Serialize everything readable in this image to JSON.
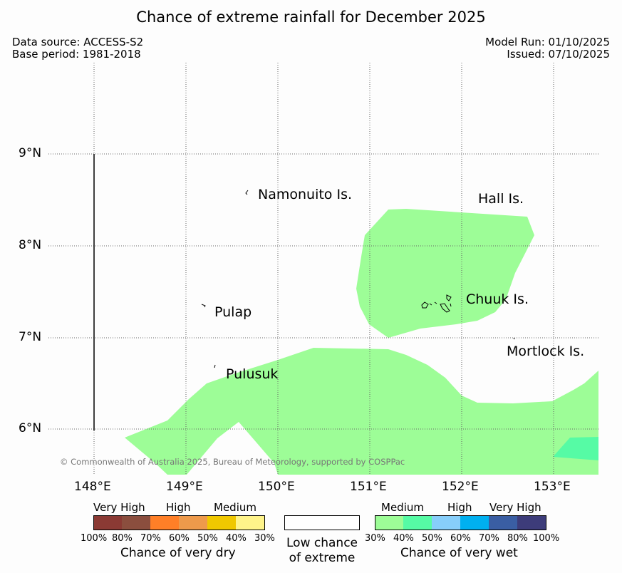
{
  "title": "Chance of extreme rainfall for December 2025",
  "header": {
    "data_source": "Data source: ACCESS-S2",
    "base_period": "Base period: 1981-2018",
    "model_run": "Model Run: 01/10/2025",
    "issued": "Issued: 07/10/2025"
  },
  "axes": {
    "latitudes": [
      "9°N",
      "8°N",
      "7°N",
      "6°N"
    ],
    "longitudes": [
      "148°E",
      "149°E",
      "150°E",
      "151°E",
      "152°E",
      "153°E"
    ]
  },
  "islands": {
    "namonuito": "Namonuito Is.",
    "hall": "Hall Is.",
    "chuuk": "Chuuk Is.",
    "pulap": "Pulap",
    "mortlock": "Mortlock Is.",
    "pulusuk": "Pulusuk"
  },
  "copyright": "© Commonwealth of Australia 2025, Bureau of Meteorology, supported by COSPPac",
  "legend": {
    "dry": {
      "levels": [
        "Very High",
        "High",
        "Medium"
      ],
      "ticks": [
        "100%",
        "80%",
        "70%",
        "60%",
        "50%",
        "40%",
        "30%"
      ],
      "colors": [
        "#8b3a34",
        "#8b4e3e",
        "#ff7f27",
        "#ee9a4b",
        "#f0c800",
        "#fff48a"
      ],
      "title": "Chance of very dry"
    },
    "low": {
      "line1": "Low chance",
      "line2": "of extreme"
    },
    "wet": {
      "levels": [
        "Medium",
        "High",
        "Very High"
      ],
      "ticks": [
        "30%",
        "40%",
        "50%",
        "60%",
        "70%",
        "80%",
        "100%"
      ],
      "colors": [
        "#9dfd97",
        "#56fba5",
        "#87cefa",
        "#00b0f0",
        "#3a5ea3",
        "#3d3c7a"
      ],
      "title": "Chance of very wet"
    }
  }
}
